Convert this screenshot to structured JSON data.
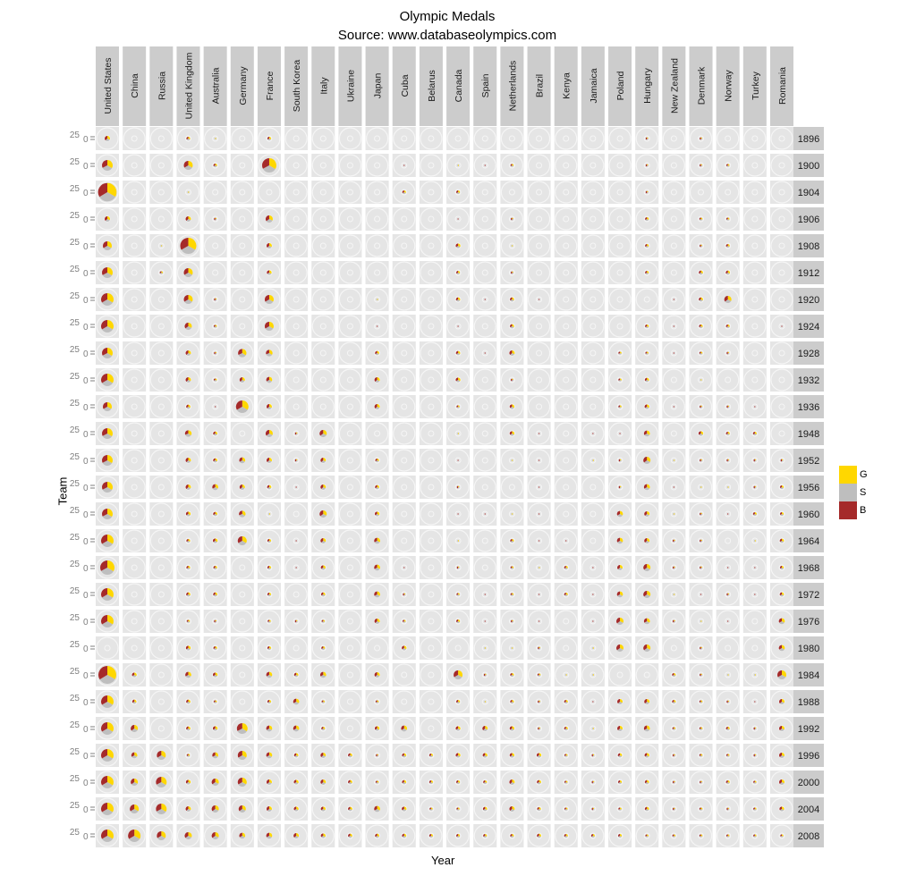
{
  "title": "Olympic Medals",
  "subtitle": "Source: www.databaseolympics.com",
  "chart_data": {
    "type": "pie",
    "facet_layout": "grid: columns = Team, rows = Year",
    "xlabel": "Year",
    "ylabel": "Team",
    "y_tick_labels": [
      "25",
      "0"
    ],
    "legend": {
      "position": "right",
      "entries": [
        {
          "label": "G",
          "color": "#FFD700"
        },
        {
          "label": "S",
          "color": "#BEBEBE"
        },
        {
          "label": "B",
          "color": "#A52A2A"
        }
      ]
    },
    "teams": [
      "United States",
      "China",
      "Russia",
      "United Kingdom",
      "Australia",
      "Germany",
      "France",
      "South Korea",
      "Italy",
      "Ukraine",
      "Japan",
      "Cuba",
      "Belarus",
      "Canada",
      "Spain",
      "Netherlands",
      "Brazil",
      "Kenya",
      "Jamaica",
      "Poland",
      "Hungary",
      "New Zealand",
      "Denmark",
      "Norway",
      "Turkey",
      "Romania"
    ],
    "years": [
      "1896",
      "1900",
      "1904",
      "1906",
      "1908",
      "1912",
      "1920",
      "1924",
      "1928",
      "1932",
      "1936",
      "1948",
      "1952",
      "1956",
      "1960",
      "1964",
      "1968",
      "1972",
      "1976",
      "1980",
      "1984",
      "1988",
      "1992",
      "1996",
      "2000",
      "2004",
      "2008"
    ],
    "value_note": "total medals per team per year (approx.), split G/S/B",
    "total_medals": [
      [
        19,
        0,
        0,
        9,
        2,
        0,
        9,
        0,
        0,
        0,
        0,
        0,
        0,
        0,
        0,
        0,
        0,
        0,
        0,
        0,
        4,
        0,
        4,
        0,
        0,
        0
      ],
      [
        77,
        0,
        0,
        54,
        9,
        0,
        137,
        0,
        0,
        0,
        0,
        1,
        0,
        2,
        1,
        6,
        0,
        0,
        0,
        0,
        4,
        0,
        4,
        6,
        0,
        0
      ],
      [
        229,
        0,
        0,
        2,
        0,
        0,
        0,
        0,
        0,
        0,
        0,
        9,
        0,
        9,
        0,
        0,
        0,
        0,
        0,
        0,
        4,
        0,
        0,
        0,
        0,
        0
      ],
      [
        19,
        0,
        0,
        19,
        4,
        0,
        34,
        0,
        0,
        0,
        0,
        0,
        0,
        1,
        0,
        4,
        0,
        0,
        0,
        0,
        9,
        0,
        6,
        6,
        0,
        0
      ],
      [
        54,
        0,
        2,
        174,
        0,
        0,
        19,
        0,
        0,
        0,
        0,
        0,
        0,
        15,
        0,
        2,
        0,
        0,
        0,
        0,
        9,
        0,
        4,
        9,
        0,
        0
      ],
      [
        77,
        0,
        6,
        54,
        0,
        0,
        15,
        0,
        0,
        0,
        0,
        0,
        0,
        9,
        0,
        4,
        0,
        0,
        0,
        0,
        9,
        0,
        12,
        12,
        0,
        0
      ],
      [
        105,
        0,
        0,
        54,
        4,
        0,
        54,
        0,
        0,
        0,
        2,
        0,
        0,
        12,
        1,
        12,
        1,
        0,
        0,
        0,
        0,
        1,
        12,
        34,
        0,
        0
      ],
      [
        105,
        0,
        0,
        34,
        6,
        0,
        54,
        0,
        0,
        0,
        1,
        0,
        0,
        1,
        0,
        12,
        0,
        0,
        0,
        0,
        9,
        1,
        9,
        9,
        0,
        1
      ],
      [
        77,
        0,
        0,
        19,
        4,
        47,
        29,
        0,
        0,
        0,
        12,
        0,
        0,
        12,
        1,
        19,
        0,
        0,
        0,
        6,
        6,
        1,
        6,
        4,
        0,
        0
      ],
      [
        105,
        0,
        0,
        19,
        6,
        19,
        24,
        0,
        0,
        0,
        19,
        0,
        0,
        15,
        0,
        4,
        0,
        0,
        0,
        6,
        12,
        0,
        2,
        0,
        0,
        0
      ],
      [
        54,
        0,
        0,
        12,
        1,
        105,
        19,
        0,
        0,
        0,
        19,
        0,
        0,
        6,
        0,
        15,
        0,
        0,
        0,
        6,
        15,
        1,
        4,
        4,
        1,
        0
      ],
      [
        77,
        0,
        0,
        29,
        12,
        0,
        34,
        4,
        34,
        0,
        0,
        0,
        0,
        2,
        0,
        15,
        1,
        0,
        1,
        1,
        24,
        0,
        15,
        9,
        9,
        0
      ],
      [
        77,
        0,
        0,
        19,
        12,
        24,
        19,
        4,
        19,
        0,
        9,
        0,
        0,
        1,
        0,
        2,
        1,
        0,
        2,
        4,
        34,
        2,
        4,
        4,
        4,
        4
      ],
      [
        77,
        0,
        0,
        19,
        24,
        19,
        12,
        1,
        19,
        0,
        12,
        0,
        0,
        4,
        0,
        0,
        1,
        0,
        0,
        4,
        24,
        1,
        2,
        2,
        4,
        9
      ],
      [
        77,
        0,
        0,
        15,
        12,
        29,
        2,
        0,
        34,
        0,
        15,
        0,
        0,
        1,
        1,
        2,
        1,
        0,
        0,
        24,
        19,
        2,
        4,
        1,
        9,
        9
      ],
      [
        105,
        0,
        0,
        9,
        15,
        54,
        9,
        1,
        19,
        0,
        24,
        0,
        0,
        2,
        0,
        9,
        1,
        1,
        0,
        24,
        19,
        4,
        4,
        0,
        2,
        12
      ],
      [
        137,
        0,
        0,
        9,
        9,
        0,
        9,
        1,
        15,
        0,
        24,
        1,
        0,
        4,
        0,
        6,
        2,
        9,
        1,
        19,
        34,
        4,
        4,
        1,
        1,
        9
      ],
      [
        105,
        0,
        0,
        12,
        12,
        0,
        9,
        0,
        12,
        0,
        24,
        4,
        0,
        6,
        1,
        6,
        1,
        9,
        1,
        24,
        34,
        2,
        1,
        4,
        1,
        12
      ],
      [
        105,
        0,
        0,
        6,
        4,
        0,
        6,
        4,
        6,
        0,
        19,
        6,
        0,
        9,
        1,
        4,
        1,
        0,
        1,
        34,
        24,
        4,
        2,
        1,
        0,
        24
      ],
      [
        0,
        0,
        0,
        15,
        9,
        0,
        9,
        0,
        9,
        0,
        0,
        15,
        0,
        0,
        2,
        2,
        4,
        0,
        2,
        34,
        34,
        0,
        4,
        0,
        0,
        24
      ],
      [
        214,
        15,
        0,
        24,
        15,
        0,
        24,
        12,
        24,
        0,
        19,
        0,
        0,
        54,
        4,
        9,
        6,
        2,
        2,
        0,
        0,
        9,
        4,
        2,
        2,
        54
      ],
      [
        105,
        12,
        0,
        12,
        6,
        0,
        9,
        24,
        6,
        0,
        6,
        0,
        0,
        9,
        2,
        9,
        4,
        9,
        1,
        19,
        19,
        9,
        6,
        4,
        1,
        19
      ],
      [
        105,
        34,
        0,
        12,
        15,
        77,
        24,
        24,
        9,
        0,
        15,
        24,
        0,
        15,
        19,
        15,
        4,
        9,
        2,
        19,
        24,
        6,
        6,
        9,
        4,
        19
      ],
      [
        105,
        24,
        54,
        6,
        24,
        54,
        24,
        12,
        19,
        12,
        4,
        12,
        9,
        15,
        15,
        15,
        15,
        6,
        4,
        12,
        15,
        4,
        6,
        6,
        4,
        19
      ],
      [
        105,
        34,
        77,
        15,
        34,
        54,
        19,
        15,
        19,
        12,
        6,
        12,
        9,
        9,
        9,
        19,
        12,
        6,
        4,
        9,
        12,
        4,
        4,
        9,
        6,
        19
      ],
      [
        105,
        54,
        77,
        19,
        34,
        34,
        19,
        15,
        15,
        12,
        24,
        15,
        6,
        6,
        12,
        19,
        9,
        6,
        4,
        6,
        12,
        4,
        6,
        4,
        6,
        15
      ],
      [
        105,
        105,
        54,
        34,
        34,
        24,
        24,
        19,
        15,
        12,
        12,
        12,
        9,
        9,
        9,
        9,
        12,
        9,
        9,
        9,
        6,
        6,
        6,
        6,
        6,
        6
      ]
    ]
  }
}
